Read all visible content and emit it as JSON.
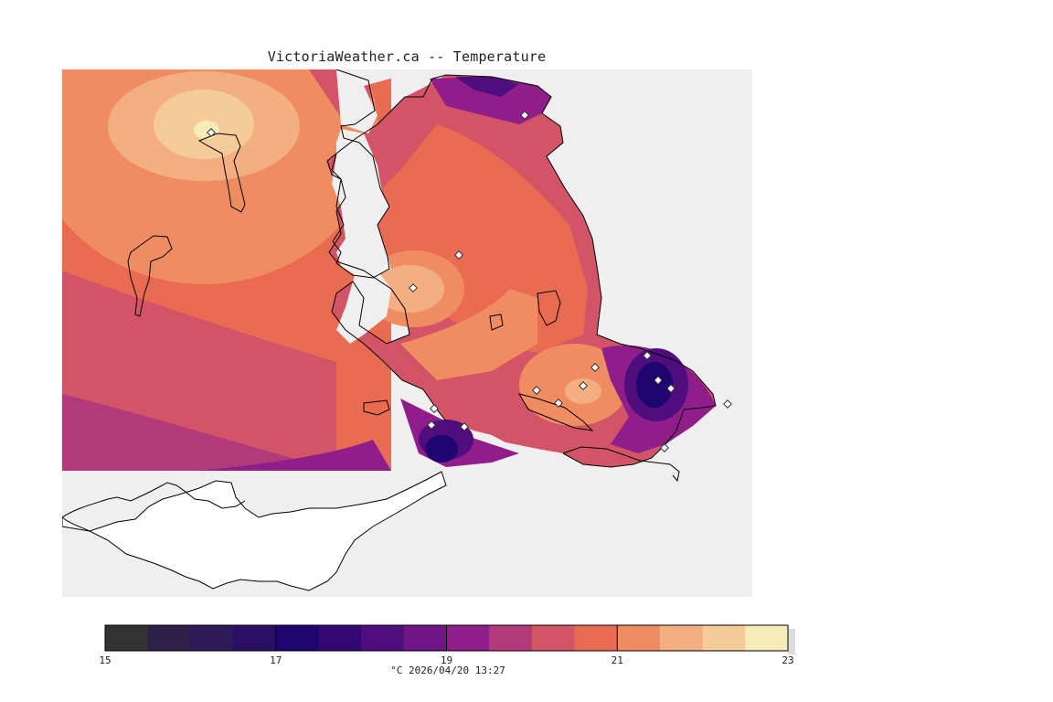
{
  "title": "VictoriaWeather.ca -- Temperature",
  "colors": {
    "ocean": "#efefef",
    "land_blank": "#ffffff",
    "coast": "#000000"
  },
  "legend": {
    "min": 15,
    "max": 23,
    "step": 0.5,
    "tick_labels": [
      "15",
      "17",
      "19",
      "21",
      "23"
    ],
    "bins": [
      {
        "from": 15.0,
        "to": 15.5,
        "color": "#333333"
      },
      {
        "from": 15.5,
        "to": 16.0,
        "color": "#2e2148"
      },
      {
        "from": 16.0,
        "to": 16.5,
        "color": "#2e1a5a"
      },
      {
        "from": 16.5,
        "to": 17.0,
        "color": "#2a0f64"
      },
      {
        "from": 17.0,
        "to": 17.5,
        "color": "#1f0570"
      },
      {
        "from": 17.5,
        "to": 18.0,
        "color": "#330774"
      },
      {
        "from": 18.0,
        "to": 18.5,
        "color": "#4f0d7e"
      },
      {
        "from": 18.5,
        "to": 19.0,
        "color": "#6f1586"
      },
      {
        "from": 19.0,
        "to": 19.5,
        "color": "#8f1e8a"
      },
      {
        "from": 19.5,
        "to": 20.0,
        "color": "#b33a7a"
      },
      {
        "from": 20.0,
        "to": 20.5,
        "color": "#d35466"
      },
      {
        "from": 20.5,
        "to": 21.0,
        "color": "#e86b52"
      },
      {
        "from": 21.0,
        "to": 21.5,
        "color": "#f08c62"
      },
      {
        "from": 21.5,
        "to": 22.0,
        "color": "#f3ae82"
      },
      {
        "from": 22.0,
        "to": 22.5,
        "color": "#f5cb9a"
      },
      {
        "from": 22.5,
        "to": 23.0,
        "color": "#f6ecb8"
      }
    ]
  },
  "caption": "°C  2026/04/20 13:27"
}
